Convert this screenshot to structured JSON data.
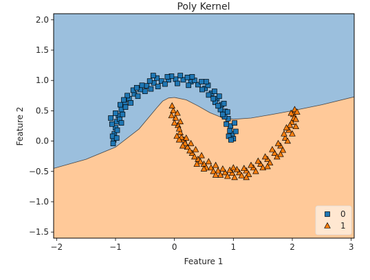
{
  "chart_data": {
    "type": "scatter",
    "title": "Poly Kernel",
    "xlabel": "Feature 1",
    "ylabel": "Feature 2",
    "xlim": [
      -2.05,
      3.05
    ],
    "ylim": [
      -1.6,
      2.1
    ],
    "x_ticks": [
      "−2",
      "−1",
      "0",
      "1",
      "2",
      "3"
    ],
    "x_tick_values": [
      -2,
      -1,
      0,
      1,
      2,
      3
    ],
    "y_ticks": [
      "−1.5",
      "−1.0",
      "−0.5",
      "0.0",
      "0.5",
      "1.0",
      "1.5",
      "2.0"
    ],
    "y_tick_values": [
      -1.5,
      -1.0,
      -0.5,
      0.0,
      0.5,
      1.0,
      1.5,
      2.0
    ],
    "grid": false,
    "legend_position": "bottom-right",
    "decision_regions": [
      {
        "class": "0",
        "color": "#9bbfdd"
      },
      {
        "class": "1",
        "color": "#ffc999"
      }
    ],
    "decision_boundary": [
      [
        -2.05,
        -0.45
      ],
      [
        -1.5,
        -0.3
      ],
      [
        -1.0,
        -0.1
      ],
      [
        -0.6,
        0.2
      ],
      [
        -0.3,
        0.55
      ],
      [
        -0.2,
        0.66
      ],
      [
        -0.1,
        0.71
      ],
      [
        0.0,
        0.72
      ],
      [
        0.2,
        0.68
      ],
      [
        0.4,
        0.58
      ],
      [
        0.6,
        0.47
      ],
      [
        0.8,
        0.39
      ],
      [
        1.0,
        0.36
      ],
      [
        1.3,
        0.38
      ],
      [
        1.6,
        0.43
      ],
      [
        2.0,
        0.5
      ],
      [
        2.5,
        0.6
      ],
      [
        3.05,
        0.73
      ]
    ],
    "series": [
      {
        "name": "0",
        "marker": "square",
        "color": "#1f77b4",
        "points": [
          [
            -1.03,
            0.02
          ],
          [
            -1.02,
            0.12
          ],
          [
            -1.0,
            0.22
          ],
          [
            -0.98,
            0.32
          ],
          [
            -0.95,
            0.42
          ],
          [
            -0.9,
            0.52
          ],
          [
            -0.84,
            0.62
          ],
          [
            -0.77,
            0.7
          ],
          [
            -0.68,
            0.78
          ],
          [
            -0.58,
            0.85
          ],
          [
            -0.47,
            0.91
          ],
          [
            -0.35,
            0.96
          ],
          [
            -0.22,
            0.99
          ],
          [
            -0.1,
            1.01
          ],
          [
            0.02,
            1.02
          ],
          [
            0.15,
            1.01
          ],
          [
            0.28,
            0.98
          ],
          [
            0.4,
            0.93
          ],
          [
            0.52,
            0.87
          ],
          [
            0.63,
            0.79
          ],
          [
            0.72,
            0.7
          ],
          [
            0.8,
            0.6
          ],
          [
            0.86,
            0.49
          ],
          [
            0.91,
            0.37
          ],
          [
            0.95,
            0.25
          ],
          [
            0.98,
            0.12
          ],
          [
            1.0,
            0.04
          ],
          [
            -1.05,
            0.08
          ],
          [
            -0.97,
            0.18
          ],
          [
            -1.06,
            0.28
          ],
          [
            -0.93,
            0.36
          ],
          [
            -1.0,
            0.46
          ],
          [
            -0.88,
            0.44
          ],
          [
            -0.83,
            0.56
          ],
          [
            -0.92,
            0.6
          ],
          [
            -0.74,
            0.63
          ],
          [
            -0.8,
            0.75
          ],
          [
            -0.7,
            0.84
          ],
          [
            -0.62,
            0.74
          ],
          [
            -0.55,
            0.92
          ],
          [
            -0.5,
            0.82
          ],
          [
            -0.4,
            0.86
          ],
          [
            -0.42,
            0.99
          ],
          [
            -0.3,
            1.04
          ],
          [
            -0.28,
            0.9
          ],
          [
            -0.16,
            0.94
          ],
          [
            -0.05,
            1.07
          ],
          [
            0.05,
            0.95
          ],
          [
            0.1,
            1.08
          ],
          [
            0.22,
            1.05
          ],
          [
            0.24,
            0.92
          ],
          [
            0.34,
            1.0
          ],
          [
            0.46,
            0.98
          ],
          [
            0.47,
            0.85
          ],
          [
            0.57,
            0.92
          ],
          [
            0.58,
            0.76
          ],
          [
            0.68,
            0.82
          ],
          [
            0.69,
            0.64
          ],
          [
            0.76,
            0.74
          ],
          [
            0.78,
            0.52
          ],
          [
            0.84,
            0.62
          ],
          [
            0.85,
            0.4
          ],
          [
            0.9,
            0.48
          ],
          [
            0.88,
            0.28
          ],
          [
            0.94,
            0.17
          ],
          [
            1.02,
            0.3
          ],
          [
            0.92,
            0.08
          ],
          [
            1.04,
            0.16
          ],
          [
            -1.08,
            0.38
          ],
          [
            -0.86,
            0.68
          ],
          [
            -0.64,
            0.88
          ],
          [
            -0.36,
            1.08
          ],
          [
            -0.12,
            1.06
          ],
          [
            0.3,
            1.06
          ],
          [
            0.54,
            0.98
          ],
          [
            0.74,
            0.58
          ],
          [
            0.96,
            0.02
          ],
          [
            -1.04,
            -0.04
          ],
          [
            -0.98,
            0.05
          ],
          [
            -0.9,
            0.3
          ],
          [
            0.66,
            0.7
          ],
          [
            0.82,
            0.44
          ]
        ]
      },
      {
        "name": "1",
        "marker": "triangle",
        "color": "#ff7f0e",
        "points": [
          [
            -0.02,
            0.5
          ],
          [
            0.02,
            0.38
          ],
          [
            0.06,
            0.26
          ],
          [
            0.1,
            0.14
          ],
          [
            0.16,
            0.02
          ],
          [
            0.22,
            -0.1
          ],
          [
            0.3,
            -0.2
          ],
          [
            0.4,
            -0.3
          ],
          [
            0.5,
            -0.38
          ],
          [
            0.62,
            -0.44
          ],
          [
            0.74,
            -0.49
          ],
          [
            0.86,
            -0.52
          ],
          [
            0.98,
            -0.53
          ],
          [
            1.1,
            -0.52
          ],
          [
            1.22,
            -0.49
          ],
          [
            1.34,
            -0.44
          ],
          [
            1.46,
            -0.38
          ],
          [
            1.58,
            -0.3
          ],
          [
            1.7,
            -0.2
          ],
          [
            1.8,
            -0.08
          ],
          [
            1.88,
            0.05
          ],
          [
            1.94,
            0.18
          ],
          [
            1.99,
            0.31
          ],
          [
            2.02,
            0.44
          ],
          [
            2.04,
            0.52
          ],
          [
            -0.05,
            0.42
          ],
          [
            0.05,
            0.46
          ],
          [
            0.0,
            0.3
          ],
          [
            0.08,
            0.2
          ],
          [
            0.04,
            0.08
          ],
          [
            0.12,
            0.06
          ],
          [
            0.18,
            -0.04
          ],
          [
            0.2,
            0.05
          ],
          [
            0.26,
            -0.16
          ],
          [
            0.28,
            -0.04
          ],
          [
            0.34,
            -0.26
          ],
          [
            0.36,
            -0.14
          ],
          [
            0.44,
            -0.34
          ],
          [
            0.46,
            -0.24
          ],
          [
            0.54,
            -0.44
          ],
          [
            0.58,
            -0.34
          ],
          [
            0.66,
            -0.5
          ],
          [
            0.7,
            -0.4
          ],
          [
            0.78,
            -0.56
          ],
          [
            0.82,
            -0.46
          ],
          [
            0.9,
            -0.58
          ],
          [
            0.94,
            -0.48
          ],
          [
            1.02,
            -0.6
          ],
          [
            1.06,
            -0.47
          ],
          [
            1.14,
            -0.57
          ],
          [
            1.18,
            -0.45
          ],
          [
            1.26,
            -0.55
          ],
          [
            1.3,
            -0.4
          ],
          [
            1.38,
            -0.5
          ],
          [
            1.42,
            -0.33
          ],
          [
            1.5,
            -0.44
          ],
          [
            1.54,
            -0.26
          ],
          [
            1.62,
            -0.36
          ],
          [
            1.66,
            -0.14
          ],
          [
            1.74,
            -0.26
          ],
          [
            1.76,
            -0.04
          ],
          [
            1.84,
            -0.15
          ],
          [
            1.86,
            0.12
          ],
          [
            1.92,
            0.0
          ],
          [
            1.96,
            0.26
          ],
          [
            2.0,
            0.12
          ],
          [
            2.03,
            0.38
          ],
          [
            2.06,
            0.24
          ],
          [
            2.08,
            0.48
          ],
          [
            1.98,
            0.46
          ],
          [
            -0.04,
            0.58
          ],
          [
            0.1,
            0.32
          ],
          [
            0.14,
            -0.08
          ],
          [
            0.38,
            -0.38
          ],
          [
            0.7,
            -0.56
          ],
          [
            1.0,
            -0.44
          ],
          [
            1.22,
            -0.6
          ],
          [
            1.58,
            -0.42
          ],
          [
            1.8,
            -0.22
          ],
          [
            2.06,
            0.36
          ],
          [
            0.08,
            0.02
          ],
          [
            0.5,
            -0.46
          ],
          [
            1.9,
            0.22
          ]
        ]
      }
    ],
    "legend": [
      {
        "label": "0",
        "marker": "square",
        "color": "#1f77b4"
      },
      {
        "label": "1",
        "marker": "triangle",
        "color": "#ff7f0e"
      }
    ]
  }
}
